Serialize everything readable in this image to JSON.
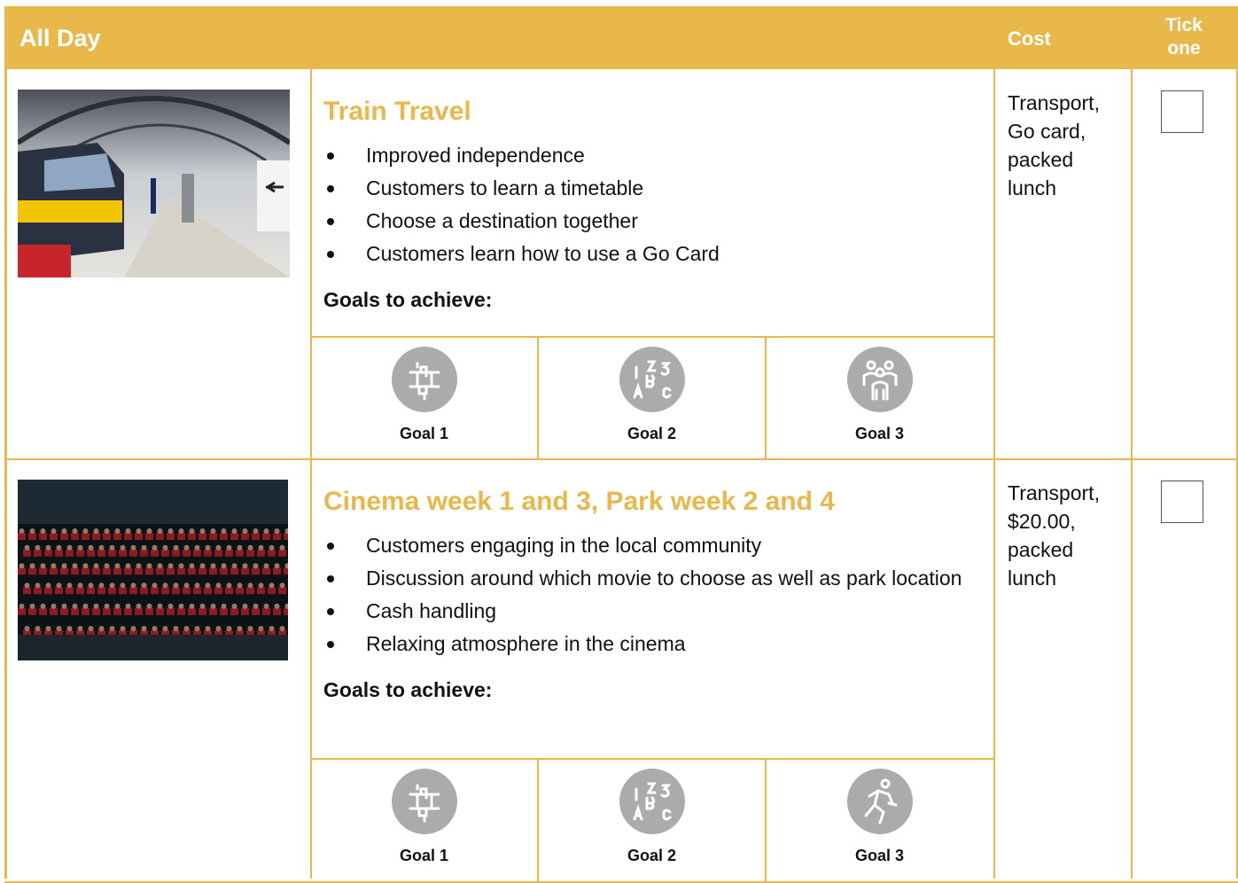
{
  "header": {
    "title": "All Day",
    "cost": "Cost",
    "tick": "Tick one"
  },
  "rows": [
    {
      "title": "Train Travel",
      "bullets": [
        "Improved independence",
        "Customers to learn a timetable",
        "Choose a destination together",
        "Customers learn how to use a Go Card"
      ],
      "goals_heading": "Goals to achieve:",
      "goals": [
        "Goal 1",
        "Goal 2",
        "Goal 3"
      ],
      "cost": "Transport, Go card, packed lunch"
    },
    {
      "title": "Cinema week 1 and 3, Park week 2 and 4",
      "bullets": [
        "Customers engaging in the local community",
        "Discussion around which movie to choose as well as park location",
        "Cash handling",
        "Relaxing atmosphere in the cinema"
      ],
      "goals_heading": "Goals to achieve:",
      "goals": [
        "Goal 1",
        "Goal 2",
        "Goal 3"
      ],
      "cost": "Transport, $20.00, packed lunch"
    }
  ]
}
